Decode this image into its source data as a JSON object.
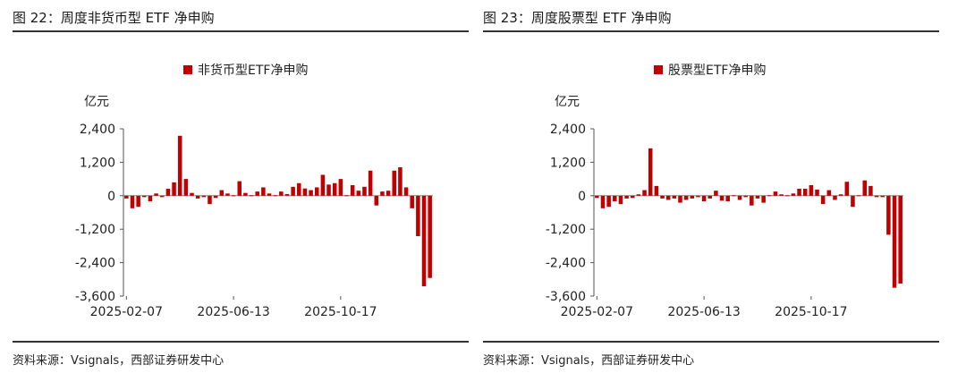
{
  "panels": [
    {
      "title": "图 22：周度非货币型 ETF 净申购",
      "source": "资料来源：Vsignals，西部证券研发中心"
    },
    {
      "title": "图 23：周度股票型 ETF 净申购",
      "source": "资料来源：Vsignals，西部证券研发中心"
    }
  ],
  "chart_data": [
    {
      "type": "bar",
      "title": "",
      "legend": "非货币型ETF净申购",
      "ylabel": "亿元",
      "xlabel": "",
      "color": "#C00000",
      "ylim": [
        -3600,
        2400
      ],
      "yticks": [
        2400,
        1200,
        0,
        -1200,
        -2400,
        -3600
      ],
      "ytick_labels": [
        "2,400",
        "1,200",
        "0",
        "-1,200",
        "-2,400",
        "-3,600"
      ],
      "xtick_labels": [
        "2025-02-07",
        "2025-06-13",
        "2025-10-17"
      ],
      "xtick_indices": [
        0,
        18,
        36
      ],
      "values": [
        -100,
        -450,
        -400,
        -50,
        -200,
        80,
        -50,
        250,
        480,
        2150,
        600,
        100,
        -100,
        -50,
        -300,
        -80,
        200,
        80,
        0,
        520,
        100,
        -30,
        150,
        300,
        80,
        -20,
        150,
        60,
        320,
        450,
        260,
        200,
        300,
        750,
        400,
        450,
        600,
        -20,
        380,
        180,
        320,
        900,
        -350,
        150,
        180,
        900,
        1020,
        300,
        -450,
        -1450,
        -3250,
        -2950
      ]
    },
    {
      "type": "bar",
      "title": "",
      "legend": "股票型ETF净申购",
      "ylabel": "亿元",
      "xlabel": "",
      "color": "#C00000",
      "ylim": [
        -3600,
        2400
      ],
      "yticks": [
        2400,
        1200,
        0,
        -1200,
        -2400,
        -3600
      ],
      "ytick_labels": [
        "2,400",
        "1,200",
        "0",
        "-1,200",
        "-2,400",
        "-3,600"
      ],
      "xtick_labels": [
        "2025-02-07",
        "2025-06-13",
        "2025-10-17"
      ],
      "xtick_indices": [
        0,
        18,
        36
      ],
      "values": [
        -80,
        -450,
        -400,
        -200,
        -300,
        -100,
        -80,
        50,
        200,
        1700,
        350,
        -100,
        -150,
        -100,
        -250,
        -150,
        -100,
        -50,
        -200,
        -100,
        180,
        -180,
        -200,
        -20,
        -150,
        -50,
        -350,
        -100,
        -250,
        -30,
        150,
        50,
        0,
        80,
        250,
        250,
        380,
        220,
        -300,
        200,
        -150,
        50,
        500,
        -400,
        0,
        550,
        350,
        -50,
        -50,
        -1400,
        -3300,
        -3150
      ]
    }
  ]
}
